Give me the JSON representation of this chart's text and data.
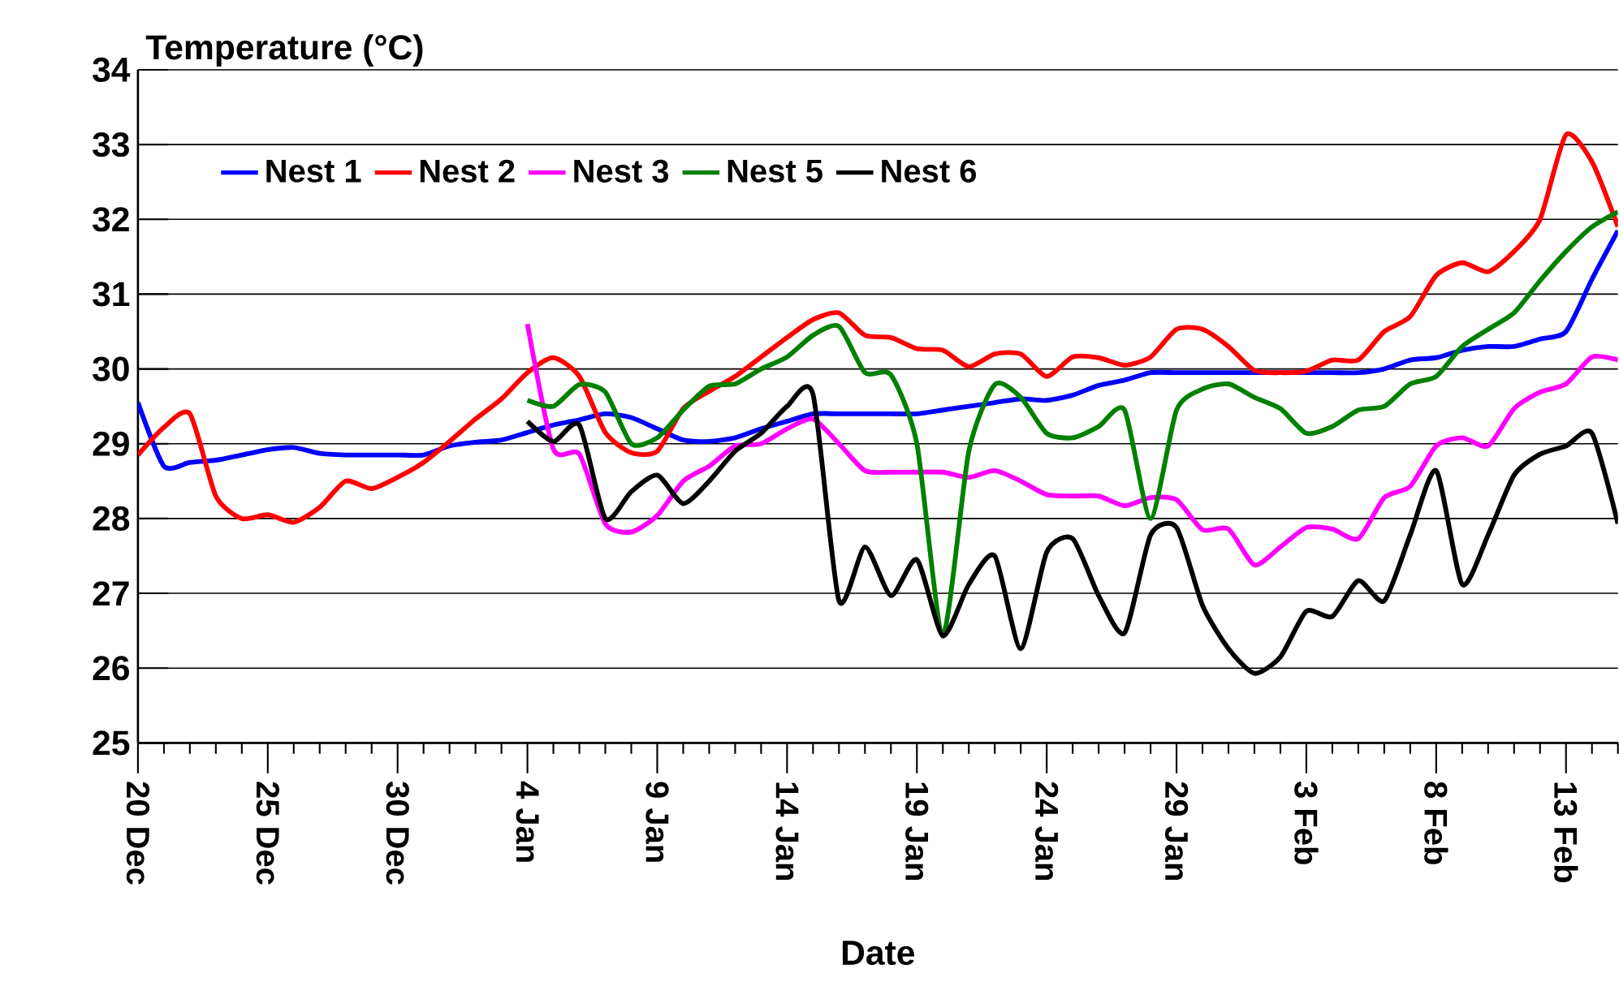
{
  "chart_data": {
    "type": "line",
    "ylabel": "Temperature (°C)",
    "xlabel": "Date",
    "categories": [
      "20 Dec",
      null,
      null,
      null,
      null,
      "25 Dec",
      null,
      null,
      null,
      null,
      "30 Dec",
      null,
      null,
      null,
      null,
      "4 Jan",
      null,
      null,
      null,
      null,
      "9 Jan",
      null,
      null,
      null,
      null,
      "14 Jan",
      null,
      null,
      null,
      null,
      "19 Jan",
      null,
      null,
      null,
      null,
      "24 Jan",
      null,
      null,
      null,
      null,
      "29 Jan",
      null,
      null,
      null,
      null,
      "3 Feb",
      null,
      null,
      null,
      null,
      "8 Feb",
      null,
      null,
      null,
      null,
      "13 Feb",
      null,
      null
    ],
    "series": [
      {
        "name": "Nest 1",
        "color": "#0000ff",
        "values": [
          29.55,
          28.7,
          28.75,
          28.78,
          28.85,
          28.92,
          28.95,
          28.87,
          28.85,
          28.85,
          28.85,
          28.85,
          28.97,
          29.02,
          29.05,
          29.15,
          29.25,
          29.32,
          29.4,
          29.35,
          29.2,
          29.05,
          29.03,
          29.08,
          29.2,
          29.3,
          29.4,
          29.4,
          29.4,
          29.4,
          29.4,
          29.45,
          29.5,
          29.55,
          29.6,
          29.58,
          29.65,
          29.78,
          29.85,
          29.95,
          29.95,
          29.95,
          29.95,
          29.95,
          29.95,
          29.95,
          29.95,
          29.95,
          30.0,
          30.12,
          30.15,
          30.25,
          30.3,
          30.3,
          30.4,
          30.5,
          31.2,
          31.85
        ]
      },
      {
        "name": "Nest 2",
        "color": "#ff0000",
        "values": [
          28.85,
          29.22,
          29.4,
          28.3,
          28.0,
          28.05,
          27.95,
          28.15,
          28.5,
          28.4,
          28.55,
          28.75,
          29.03,
          29.33,
          29.6,
          29.95,
          30.15,
          29.9,
          29.15,
          28.88,
          28.9,
          29.47,
          29.7,
          29.9,
          30.16,
          30.42,
          30.66,
          30.75,
          30.45,
          30.42,
          30.27,
          30.25,
          30.03,
          30.2,
          30.2,
          29.9,
          30.16,
          30.15,
          30.05,
          30.16,
          30.53,
          30.53,
          30.3,
          29.98,
          29.95,
          29.97,
          30.12,
          30.12,
          30.5,
          30.7,
          31.25,
          31.42,
          31.3,
          31.57,
          32.0,
          33.13,
          32.77,
          31.9
        ]
      },
      {
        "name": "Nest 3",
        "color": "#ff00ff",
        "values": [
          null,
          null,
          null,
          null,
          null,
          null,
          null,
          null,
          null,
          null,
          null,
          null,
          null,
          null,
          null,
          30.6,
          28.93,
          28.86,
          27.93,
          27.82,
          28.04,
          28.5,
          28.7,
          28.97,
          29.0,
          29.2,
          29.33,
          29.0,
          28.64,
          28.62,
          28.62,
          28.62,
          28.55,
          28.64,
          28.5,
          28.32,
          28.3,
          28.3,
          28.17,
          28.28,
          28.25,
          27.85,
          27.86,
          27.38,
          27.62,
          27.88,
          27.86,
          27.73,
          28.28,
          28.43,
          28.97,
          29.08,
          28.97,
          29.47,
          29.69,
          29.8,
          30.16,
          30.12
        ]
      },
      {
        "name": "Nest 5",
        "color": "#008000",
        "values": [
          null,
          null,
          null,
          null,
          null,
          null,
          null,
          null,
          null,
          null,
          null,
          null,
          null,
          null,
          null,
          29.58,
          29.5,
          29.79,
          29.69,
          29.0,
          29.08,
          29.45,
          29.77,
          29.8,
          30.0,
          30.16,
          30.45,
          30.57,
          29.95,
          29.92,
          29.0,
          26.45,
          28.9,
          29.79,
          29.62,
          29.14,
          29.08,
          29.23,
          29.45,
          28.0,
          29.45,
          29.73,
          29.8,
          29.62,
          29.47,
          29.14,
          29.23,
          29.45,
          29.5,
          29.8,
          29.9,
          30.3,
          30.53,
          30.75,
          31.18,
          31.57,
          31.9,
          32.1
        ]
      },
      {
        "name": "Nest 6",
        "color": "#000000",
        "values": [
          null,
          null,
          null,
          null,
          null,
          null,
          null,
          null,
          null,
          null,
          null,
          null,
          null,
          null,
          null,
          29.3,
          29.03,
          29.25,
          28.0,
          28.36,
          28.58,
          28.2,
          28.5,
          28.9,
          29.14,
          29.5,
          29.66,
          26.9,
          27.62,
          26.97,
          27.45,
          26.43,
          27.12,
          27.5,
          26.26,
          27.55,
          27.73,
          26.97,
          26.47,
          27.78,
          27.88,
          26.84,
          26.26,
          25.93,
          26.15,
          26.76,
          26.69,
          27.17,
          26.9,
          27.78,
          28.64,
          27.12,
          27.78,
          28.58,
          28.86,
          28.97,
          29.14,
          27.93
        ]
      }
    ],
    "ylim": [
      25,
      34
    ],
    "yticks": [
      25,
      26,
      27,
      28,
      29,
      30,
      31,
      32,
      33,
      34
    ],
    "grid": "y",
    "legend": "top left",
    "marker": "none",
    "line_style": "solid"
  }
}
